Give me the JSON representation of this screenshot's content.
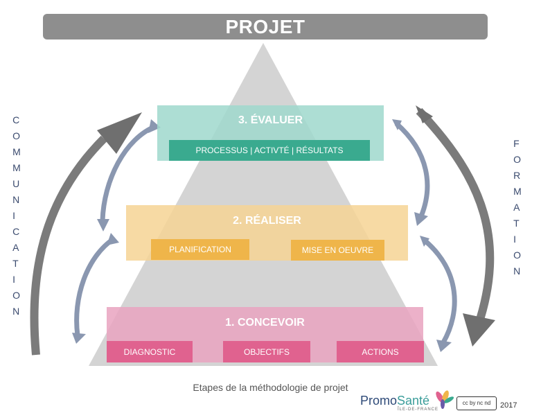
{
  "title": "PROJET",
  "sides": {
    "left": "COMMUNICATION",
    "right": "FORMATION"
  },
  "levels": [
    {
      "heading": "3. ÉVALUER",
      "color": "#9fd8cc",
      "tag_color": "#3aaa8f",
      "tags": [
        "PROCESSUS | ACTIVTÉ | RÉSULTATS"
      ]
    },
    {
      "heading": "2. RÉALISER",
      "color": "#f6d394",
      "tag_color": "#efb54a",
      "tags": [
        "PLANIFICATION",
        "MISE EN OEUVRE"
      ]
    },
    {
      "heading": "1. CONCEVOIR",
      "color": "#e9a3bf",
      "tag_color": "#e0628f",
      "tags": [
        "DIAGNOSTIC",
        "OBJECTIFS",
        "ACTIONS"
      ]
    }
  ],
  "caption": "Etapes de la méthodologie de projet",
  "footer": {
    "brand_main": "Promo",
    "brand_accent": "Santé",
    "brand_sub": "ÎLE-DE-FRANCE",
    "license": "cc by nc nd",
    "year": "2017"
  }
}
